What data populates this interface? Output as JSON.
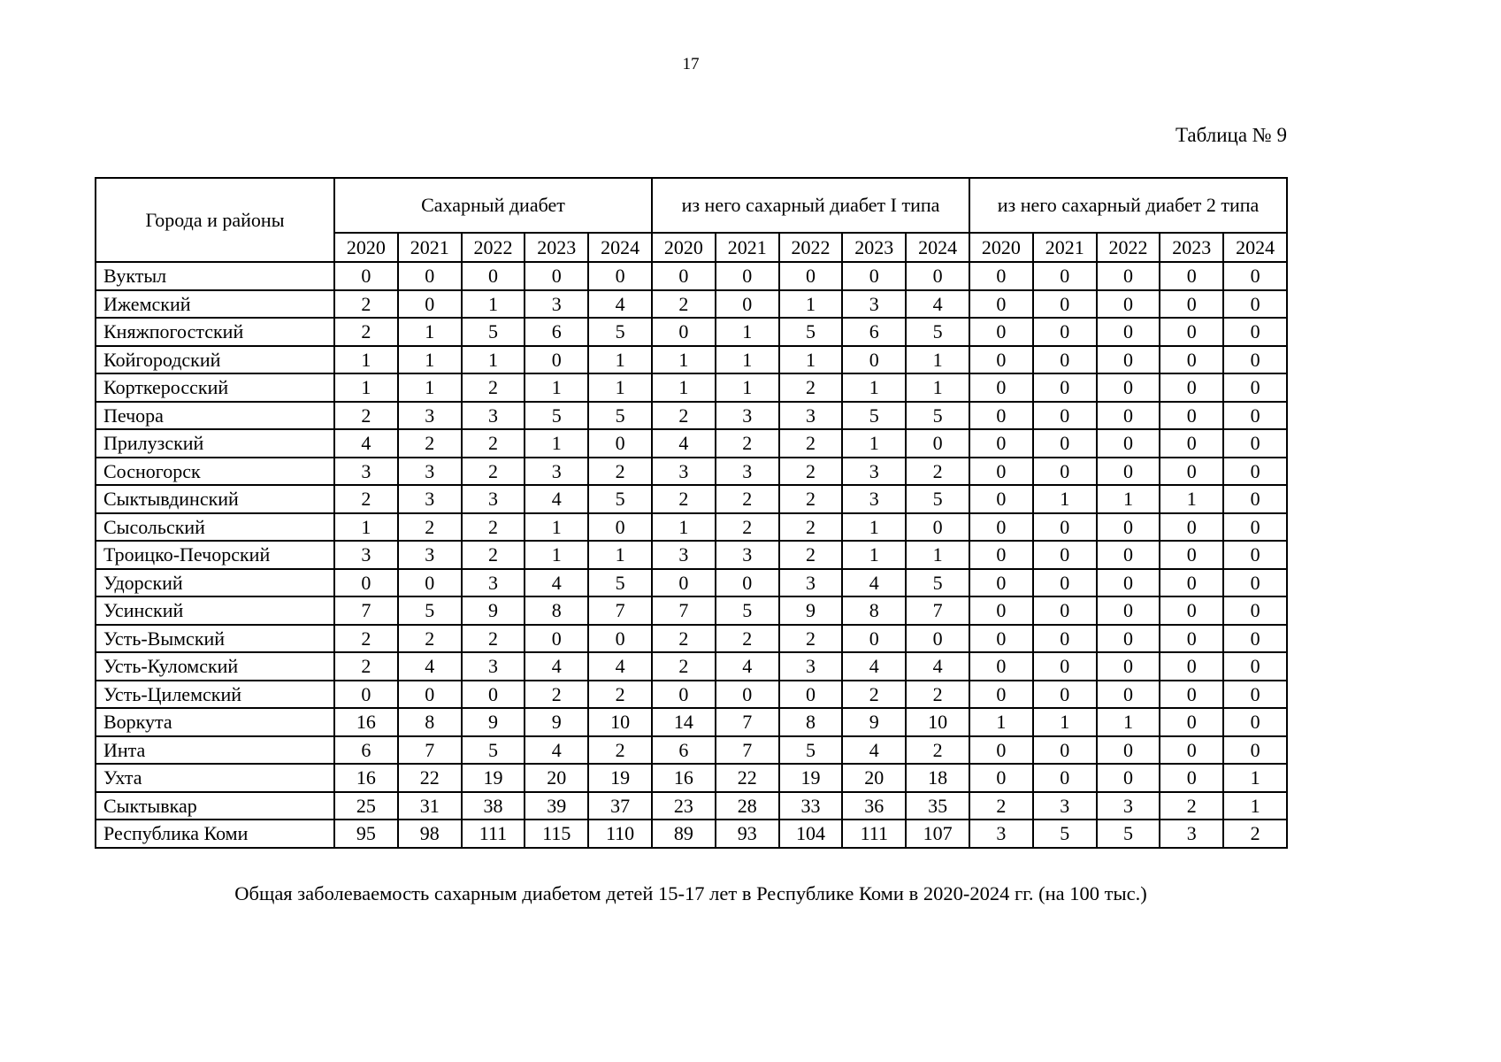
{
  "page": {
    "number": "17",
    "table_label": "Таблица № 9",
    "caption": "Общая заболеваемость сахарным диабетом детей 15-17 лет в Республике Коми в 2020-2024 гг. (на 100 тыс.)"
  },
  "table": {
    "corner_header": "Города и районы",
    "group_headers": [
      "Сахарный диабет",
      "из него сахарный диабет I типа",
      "из него сахарный диабет 2 типа"
    ],
    "years": [
      "2020",
      "2021",
      "2022",
      "2023",
      "2024"
    ],
    "rows": [
      {
        "name": "Вуктыл",
        "total": [
          "0",
          "0",
          "0",
          "0",
          "0"
        ],
        "type1": [
          "0",
          "0",
          "0",
          "0",
          "0"
        ],
        "type2": [
          "0",
          "0",
          "0",
          "0",
          "0"
        ]
      },
      {
        "name": "Ижемский",
        "total": [
          "2",
          "0",
          "1",
          "3",
          "4"
        ],
        "type1": [
          "2",
          "0",
          "1",
          "3",
          "4"
        ],
        "type2": [
          "0",
          "0",
          "0",
          "0",
          "0"
        ]
      },
      {
        "name": "Княжпогостский",
        "total": [
          "2",
          "1",
          "5",
          "6",
          "5"
        ],
        "type1": [
          "0",
          "1",
          "5",
          "6",
          "5"
        ],
        "type2": [
          "0",
          "0",
          "0",
          "0",
          "0"
        ]
      },
      {
        "name": "Койгородский",
        "total": [
          "1",
          "1",
          "1",
          "0",
          "1"
        ],
        "type1": [
          "1",
          "1",
          "1",
          "0",
          "1"
        ],
        "type2": [
          "0",
          "0",
          "0",
          "0",
          "0"
        ]
      },
      {
        "name": "Корткеросский",
        "total": [
          "1",
          "1",
          "2",
          "1",
          "1"
        ],
        "type1": [
          "1",
          "1",
          "2",
          "1",
          "1"
        ],
        "type2": [
          "0",
          "0",
          "0",
          "0",
          "0"
        ]
      },
      {
        "name": "Печора",
        "total": [
          "2",
          "3",
          "3",
          "5",
          "5"
        ],
        "type1": [
          "2",
          "3",
          "3",
          "5",
          "5"
        ],
        "type2": [
          "0",
          "0",
          "0",
          "0",
          "0"
        ]
      },
      {
        "name": "Прилузский",
        "total": [
          "4",
          "2",
          "2",
          "1",
          "0"
        ],
        "type1": [
          "4",
          "2",
          "2",
          "1",
          "0"
        ],
        "type2": [
          "0",
          "0",
          "0",
          "0",
          "0"
        ]
      },
      {
        "name": "Сосногорск",
        "total": [
          "3",
          "3",
          "2",
          "3",
          "2"
        ],
        "type1": [
          "3",
          "3",
          "2",
          "3",
          "2"
        ],
        "type2": [
          "0",
          "0",
          "0",
          "0",
          "0"
        ]
      },
      {
        "name": "Сыктывдинский",
        "total": [
          "2",
          "3",
          "3",
          "4",
          "5"
        ],
        "type1": [
          "2",
          "2",
          "2",
          "3",
          "5"
        ],
        "type2": [
          "0",
          "1",
          "1",
          "1",
          "0"
        ]
      },
      {
        "name": "Сысольский",
        "total": [
          "1",
          "2",
          "2",
          "1",
          "0"
        ],
        "type1": [
          "1",
          "2",
          "2",
          "1",
          "0"
        ],
        "type2": [
          "0",
          "0",
          "0",
          "0",
          "0"
        ]
      },
      {
        "name": "Троицко-Печорский",
        "total": [
          "3",
          "3",
          "2",
          "1",
          "1"
        ],
        "type1": [
          "3",
          "3",
          "2",
          "1",
          "1"
        ],
        "type2": [
          "0",
          "0",
          "0",
          "0",
          "0"
        ]
      },
      {
        "name": "Удорский",
        "total": [
          "0",
          "0",
          "3",
          "4",
          "5"
        ],
        "type1": [
          "0",
          "0",
          "3",
          "4",
          "5"
        ],
        "type2": [
          "0",
          "0",
          "0",
          "0",
          "0"
        ]
      },
      {
        "name": "Усинский",
        "total": [
          "7",
          "5",
          "9",
          "8",
          "7"
        ],
        "type1": [
          "7",
          "5",
          "9",
          "8",
          "7"
        ],
        "type2": [
          "0",
          "0",
          "0",
          "0",
          "0"
        ]
      },
      {
        "name": "Усть-Вымский",
        "total": [
          "2",
          "2",
          "2",
          "0",
          "0"
        ],
        "type1": [
          "2",
          "2",
          "2",
          "0",
          "0"
        ],
        "type2": [
          "0",
          "0",
          "0",
          "0",
          "0"
        ]
      },
      {
        "name": "Усть-Куломский",
        "total": [
          "2",
          "4",
          "3",
          "4",
          "4"
        ],
        "type1": [
          "2",
          "4",
          "3",
          "4",
          "4"
        ],
        "type2": [
          "0",
          "0",
          "0",
          "0",
          "0"
        ]
      },
      {
        "name": "Усть-Цилемский",
        "total": [
          "0",
          "0",
          "0",
          "2",
          "2"
        ],
        "type1": [
          "0",
          "0",
          "0",
          "2",
          "2"
        ],
        "type2": [
          "0",
          "0",
          "0",
          "0",
          "0"
        ]
      },
      {
        "name": "Воркута",
        "total": [
          "16",
          "8",
          "9",
          "9",
          "10"
        ],
        "type1": [
          "14",
          "7",
          "8",
          "9",
          "10"
        ],
        "type2": [
          "1",
          "1",
          "1",
          "0",
          "0"
        ]
      },
      {
        "name": "Инта",
        "total": [
          "6",
          "7",
          "5",
          "4",
          "2"
        ],
        "type1": [
          "6",
          "7",
          "5",
          "4",
          "2"
        ],
        "type2": [
          "0",
          "0",
          "0",
          "0",
          "0"
        ]
      },
      {
        "name": "Ухта",
        "total": [
          "16",
          "22",
          "19",
          "20",
          "19"
        ],
        "type1": [
          "16",
          "22",
          "19",
          "20",
          "18"
        ],
        "type2": [
          "0",
          "0",
          "0",
          "0",
          "1"
        ]
      },
      {
        "name": "Сыктывкар",
        "total": [
          "25",
          "31",
          "38",
          "39",
          "37"
        ],
        "type1": [
          "23",
          "28",
          "33",
          "36",
          "35"
        ],
        "type2": [
          "2",
          "3",
          "3",
          "2",
          "1"
        ]
      },
      {
        "name": "Республика Коми",
        "total": [
          "95",
          "98",
          "111",
          "115",
          "110"
        ],
        "type1": [
          "89",
          "93",
          "104",
          "111",
          "107"
        ],
        "type2": [
          "3",
          "5",
          "5",
          "3",
          "2"
        ]
      }
    ]
  }
}
